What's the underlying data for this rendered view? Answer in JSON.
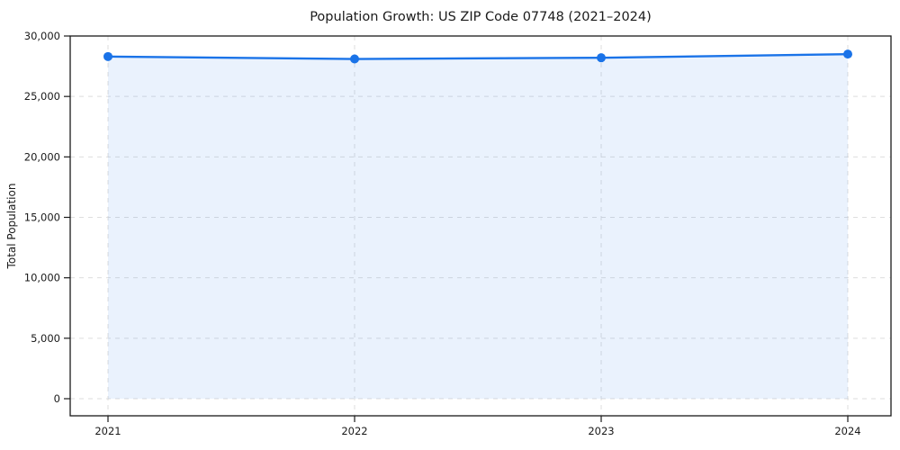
{
  "chart_data": {
    "type": "line",
    "title": "Population Growth: US ZIP Code 07748 (2021–2024)",
    "xlabel": "",
    "ylabel": "Total Population",
    "x": [
      2021,
      2022,
      2023,
      2024
    ],
    "xtick_labels": [
      "2021",
      "2022",
      "2023",
      "2024"
    ],
    "series": [
      {
        "name": "Total Population",
        "values": [
          28300,
          28100,
          28200,
          28500
        ]
      }
    ],
    "ylim": [
      0,
      30000
    ],
    "yticks": [
      0,
      5000,
      10000,
      15000,
      20000,
      25000,
      30000
    ],
    "ytick_labels": [
      "0",
      "5,000",
      "10,000",
      "15,000",
      "20,000",
      "25,000",
      "30,000"
    ],
    "grid": true,
    "grid_style": "dashed",
    "legend": "none",
    "marker": "circle",
    "fill_to_zero": true,
    "colors": {
      "line": "#1a73e8",
      "marker": "#1a73e8",
      "fill": "#1a73e8",
      "fill_opacity": 0.09,
      "grid": "#d6d6d6",
      "axis": "#1a1a1a",
      "text": "#1a1a1a",
      "background": "#ffffff"
    }
  }
}
